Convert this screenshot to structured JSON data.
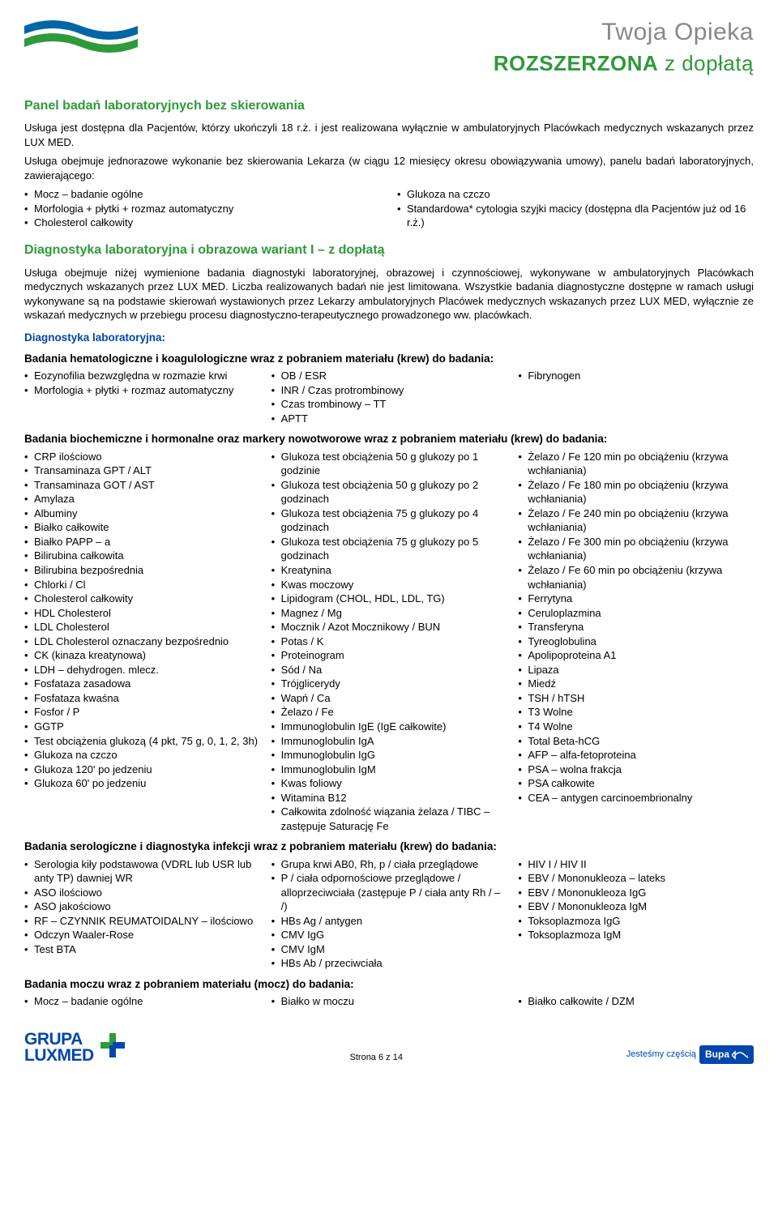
{
  "header": {
    "line1": "Twoja Opieka",
    "line2_bold": "ROZSZERZONA",
    "line2_rest": " z dopłatą",
    "wave_colors": {
      "blue": "#0066a8",
      "green": "#2e9a3a",
      "light_green": "#7cc242"
    }
  },
  "section1": {
    "title": "Panel badań laboratoryjnych bez skierowania",
    "para1": "Usługa jest dostępna dla Pacjentów, którzy ukończyli 18 r.ż. i jest realizowana wyłącznie w ambulatoryjnych Placówkach medycznych wskazanych przez LUX MED.",
    "para2": "Usługa obejmuje jednorazowe wykonanie bez skierowania Lekarza (w ciągu 12 miesięcy okresu obowiązywania umowy), panelu badań laboratoryjnych, zawierającego:",
    "col1": [
      "Mocz – badanie ogólne",
      "Morfologia + płytki + rozmaz automatyczny",
      "Cholesterol całkowity"
    ],
    "col2": [
      "Glukoza na czczo",
      "Standardowa* cytologia szyjki macicy (dostępna dla Pacjentów już od 16 r.ż.)"
    ]
  },
  "section2": {
    "title": "Diagnostyka laboratoryjna i obrazowa wariant I – z dopłatą",
    "para": "Usługa obejmuje niżej wymienione badania diagnostyki laboratoryjnej, obrazowej i czynnościowej, wykonywane w ambulatoryjnych Placówkach medycznych wskazanych przez LUX MED. Liczba realizowanych badań nie jest limitowana. Wszystkie badania diagnostyczne dostępne w ramach usługi wykonywane są na podstawie skierowań wystawionych przez Lekarzy ambulatoryjnych Placówek medycznych wskazanych przez LUX MED, wyłącznie ze wskazań medycznych w przebiegu procesu diagnostyczno-terapeutycznego prowadzonego ww. placówkach."
  },
  "diag_lab_title": "Diagnostyka laboratoryjna:",
  "group1": {
    "title": "Badania hematologiczne i koagulologiczne wraz z pobraniem materiału (krew) do badania:",
    "col1": [
      "Eozynofilia bezwzględna w rozmazie krwi",
      "Morfologia + płytki + rozmaz automatyczny"
    ],
    "col2": [
      "OB / ESR",
      "INR / Czas protrombinowy",
      "Czas trombinowy – TT",
      "APTT"
    ],
    "col3": [
      "Fibrynogen"
    ]
  },
  "group2": {
    "title": "Badania biochemiczne i hormonalne oraz markery nowotworowe wraz z pobraniem materiału (krew) do badania:",
    "col1": [
      "CRP ilościowo",
      "Transaminaza GPT / ALT",
      "Transaminaza GOT / AST",
      "Amylaza",
      "Albuminy",
      "Białko całkowite",
      "Białko PAPP – a",
      "Bilirubina całkowita",
      "Bilirubina bezpośrednia",
      "Chlorki / Cl",
      "Cholesterol całkowity",
      "HDL Cholesterol",
      "LDL Cholesterol",
      "LDL Cholesterol oznaczany bezpośrednio",
      "CK (kinaza kreatynowa)",
      "LDH – dehydrogen. mlecz.",
      "Fosfataza zasadowa",
      "Fosfataza kwaśna",
      "Fosfor / P",
      "GGTP",
      "Test obciążenia glukozą (4 pkt, 75 g, 0, 1, 2, 3h)",
      "Glukoza na czczo",
      "Glukoza 120' po jedzeniu",
      "Glukoza 60' po jedzeniu"
    ],
    "col2": [
      "Glukoza test obciążenia 50 g glukozy po 1 godzinie",
      "Glukoza test obciążenia 50 g glukozy po 2 godzinach",
      "Glukoza test obciążenia 75 g glukozy po 4 godzinach",
      "Glukoza test obciążenia 75 g glukozy po 5 godzinach",
      "Kreatynina",
      "Kwas moczowy",
      "Lipidogram (CHOL, HDL, LDL, TG)",
      "Magnez / Mg",
      "Mocznik / Azot Mocznikowy / BUN",
      "Potas / K",
      "Proteinogram",
      "Sód / Na",
      "Trójglicerydy",
      "Wapń / Ca",
      "Żelazo / Fe",
      "Immunoglobulin IgE (IgE całkowite)",
      "Immunoglobulin IgA",
      "Immunoglobulin IgG",
      "Immunoglobulin IgM",
      "Kwas foliowy",
      "Witamina B12",
      "Całkowita zdolność wiązania żelaza / TIBC – zastępuje Saturację Fe"
    ],
    "col3": [
      "Żelazo / Fe 120 min po obciążeniu (krzywa wchłaniania)",
      "Żelazo / Fe 180 min po obciążeniu (krzywa wchłaniania)",
      "Żelazo / Fe 240 min po obciążeniu (krzywa wchłaniania)",
      "Żelazo / Fe 300 min po obciążeniu (krzywa wchłaniania)",
      "Żelazo / Fe 60 min po obciążeniu (krzywa wchłaniania)",
      "Ferrytyna",
      "Ceruloplazmina",
      "Transferyna",
      "Tyreoglobulina",
      "Apolipoproteina A1",
      "Lipaza",
      "Miedź",
      "TSH / hTSH",
      "T3 Wolne",
      "T4 Wolne",
      "Total Beta-hCG",
      "AFP – alfa-fetoproteina",
      "PSA – wolna frakcja",
      "PSA całkowite",
      "CEA – antygen carcinoembrionalny"
    ]
  },
  "group3": {
    "title": "Badania serologiczne i diagnostyka infekcji wraz z pobraniem materiału (krew) do badania:",
    "col1": [
      "Serologia kiły podstawowa (VDRL lub USR lub anty TP) dawniej WR",
      "ASO ilościowo",
      "ASO jakościowo",
      "RF – CZYNNIK REUMATOIDALNY – ilościowo",
      "Odczyn Waaler-Rose",
      "Test BTA"
    ],
    "col2": [
      "Grupa krwi AB0, Rh, p / ciała przeglądowe",
      "P / ciała odpornościowe przeglądowe / alloprzeciwciała (zastępuje P / ciała anty Rh / – /)",
      "HBs Ag / antygen",
      "CMV IgG",
      "CMV IgM",
      "HBs Ab / przeciwciała"
    ],
    "col3": [
      "HIV I / HIV II",
      "EBV / Mononukleoza – lateks",
      "EBV / Mononukleoza IgG",
      "EBV / Mononukleoza IgM",
      "Toksoplazmoza IgG",
      "Toksoplazmoza IgM"
    ]
  },
  "group4": {
    "title": "Badania moczu wraz z pobraniem materiału (mocz) do badania:",
    "col1": [
      "Mocz – badanie ogólne"
    ],
    "col2": [
      "Białko w moczu"
    ],
    "col3": [
      "Białko całkowite / DZM"
    ]
  },
  "footer": {
    "logo_line1": "GRUPA",
    "logo_line2": "LUXMED",
    "plus_green": "#2e9a3a",
    "plus_blue": "#0046ad",
    "page_text": "Strona 6 z 14",
    "bupa_prefix": "Jesteśmy częścią",
    "bupa_label": "Bupa"
  }
}
